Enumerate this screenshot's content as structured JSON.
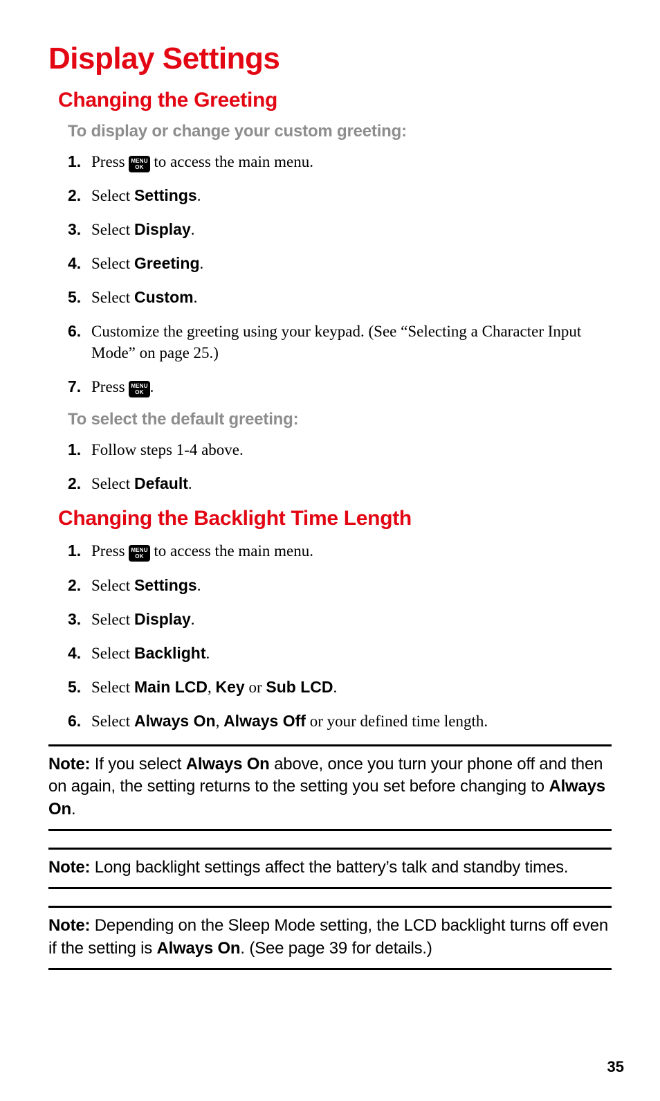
{
  "colors": {
    "accent_red": "#e30613",
    "lead_gray": "#8d8d8d",
    "text_black": "#000000",
    "page_bg": "#ffffff",
    "key_bg": "#000000",
    "key_fg": "#ffffff"
  },
  "typography": {
    "page_title_pt": 44,
    "section_title_pt": 30,
    "lead_pt": 24,
    "body_pt": 23,
    "note_pt": 24,
    "page_number_pt": 22,
    "title_family": "Arial Narrow (condensed sans)",
    "body_family": "Georgia / serif"
  },
  "page_number": "35",
  "page_title": "Display Settings",
  "menu_key": {
    "line1": "MENU",
    "line2": "OK"
  },
  "sections": {
    "greeting": {
      "title": "Changing the Greeting",
      "lead1": "To display or change your custom greeting:",
      "steps1": {
        "1_a": "Press ",
        "1_b": " to access the main menu.",
        "2_a": "Select ",
        "2_b": "Settings",
        "2_c": ".",
        "3_a": "Select ",
        "3_b": "Display",
        "3_c": ".",
        "4_a": "Select ",
        "4_b": "Greeting",
        "4_c": ".",
        "5_a": "Select ",
        "5_b": "Custom",
        "5_c": ".",
        "6": "Customize the greeting using your keypad. (See “Selecting a Character Input Mode” on page 25.)",
        "7_a": "Press ",
        "7_b": "."
      },
      "lead2": "To select the default greeting:",
      "steps2": {
        "1": "Follow steps 1-4 above.",
        "2_a": "Select ",
        "2_b": "Default",
        "2_c": "."
      }
    },
    "backlight": {
      "title": "Changing the Backlight Time Length",
      "steps": {
        "1_a": "Press ",
        "1_b": " to access the main menu.",
        "2_a": "Select ",
        "2_b": "Settings",
        "2_c": ".",
        "3_a": "Select ",
        "3_b": "Display",
        "3_c": ".",
        "4_a": "Select ",
        "4_b": "Backlight",
        "4_c": ".",
        "5_a": "Select ",
        "5_b": "Main LCD",
        "5_c": ", ",
        "5_d": "Key",
        "5_e": " or ",
        "5_f": "Sub LCD",
        "5_g": ".",
        "6_a": "Select ",
        "6_b": "Always On",
        "6_c": ", ",
        "6_d": "Always Off",
        "6_e": " or your defined time length."
      }
    }
  },
  "notes": {
    "note_label": "Note:",
    "n1_a": " If you select ",
    "n1_b": "Always On",
    "n1_c": " above, once you turn your phone off and then on again, the setting returns to the setting you set before changing to ",
    "n1_d": "Always On",
    "n1_e": ".",
    "n2": " Long backlight settings affect the battery’s talk and standby times.",
    "n3_a": " Depending on the Sleep Mode setting, the LCD backlight turns off even if the setting is ",
    "n3_b": "Always On",
    "n3_c": ". (See page 39 for details.)"
  }
}
